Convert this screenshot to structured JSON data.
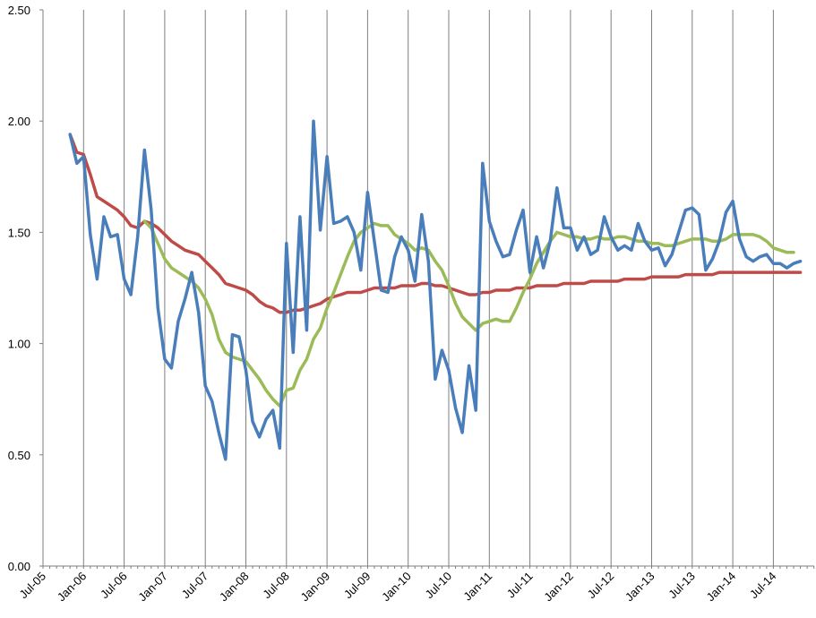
{
  "chart_data": {
    "type": "line",
    "title": "",
    "xlabel": "",
    "ylabel": "",
    "ylim": [
      0,
      2.5
    ],
    "yticks": [
      "0.00",
      "0.50",
      "1.00",
      "1.50",
      "2.00",
      "2.50"
    ],
    "x_tick_labels": [
      "Jul-05",
      "Jan-06",
      "Jul-06",
      "Jan-07",
      "Jul-07",
      "Jan-08",
      "Jul-08",
      "Jan-09",
      "Jul-09",
      "Jan-10",
      "Jul-10",
      "Jan-11",
      "Jul-11",
      "Jan-12",
      "Jul-12",
      "Jan-13",
      "Jul-13",
      "Jan-14",
      "Jul-14"
    ],
    "grid": "vertical",
    "legend": "none",
    "x_start": "2005-11",
    "series": [
      {
        "color": "#4a7ebb",
        "values": [
          1.94,
          1.81,
          1.84,
          1.49,
          1.29,
          1.57,
          1.48,
          1.49,
          1.29,
          1.22,
          1.48,
          1.87,
          1.6,
          1.16,
          0.93,
          0.89,
          1.1,
          1.2,
          1.32,
          1.14,
          0.81,
          0.74,
          0.6,
          0.48,
          1.04,
          1.03,
          0.88,
          0.65,
          0.58,
          0.66,
          0.7,
          0.53,
          1.45,
          0.96,
          1.57,
          1.06,
          2.0,
          1.51,
          1.84,
          1.54,
          1.55,
          1.57,
          1.5,
          1.33,
          1.68,
          1.46,
          1.24,
          1.23,
          1.39,
          1.48,
          1.42,
          1.28,
          1.58,
          1.37,
          0.84,
          0.97,
          0.88,
          0.71,
          0.6,
          0.9,
          0.7,
          1.81,
          1.55,
          1.46,
          1.39,
          1.4,
          1.51,
          1.6,
          1.32,
          1.48,
          1.34,
          1.46,
          1.7,
          1.52,
          1.52,
          1.42,
          1.48,
          1.4,
          1.42,
          1.57,
          1.48,
          1.42,
          1.44,
          1.42,
          1.54,
          1.46,
          1.42,
          1.43,
          1.35,
          1.4,
          1.5,
          1.6,
          1.61,
          1.58,
          1.33,
          1.38,
          1.46,
          1.59,
          1.64,
          1.47,
          1.39,
          1.37,
          1.39,
          1.4,
          1.36,
          1.36,
          1.34,
          1.36,
          1.37
        ]
      },
      {
        "color": "#be4b48",
        "values": [
          1.94,
          1.86,
          1.85,
          1.76,
          1.66,
          1.64,
          1.62,
          1.6,
          1.57,
          1.53,
          1.52,
          1.55,
          1.54,
          1.52,
          1.49,
          1.46,
          1.44,
          1.42,
          1.41,
          1.4,
          1.37,
          1.34,
          1.31,
          1.27,
          1.26,
          1.25,
          1.24,
          1.22,
          1.19,
          1.17,
          1.16,
          1.14,
          1.14,
          1.15,
          1.15,
          1.16,
          1.17,
          1.18,
          1.2,
          1.21,
          1.22,
          1.23,
          1.23,
          1.23,
          1.24,
          1.25,
          1.25,
          1.25,
          1.25,
          1.26,
          1.26,
          1.26,
          1.27,
          1.27,
          1.26,
          1.26,
          1.25,
          1.24,
          1.23,
          1.22,
          1.22,
          1.23,
          1.23,
          1.24,
          1.24,
          1.24,
          1.25,
          1.25,
          1.25,
          1.26,
          1.26,
          1.26,
          1.26,
          1.27,
          1.27,
          1.27,
          1.27,
          1.28,
          1.28,
          1.28,
          1.28,
          1.28,
          1.29,
          1.29,
          1.29,
          1.29,
          1.3,
          1.3,
          1.3,
          1.3,
          1.3,
          1.31,
          1.31,
          1.31,
          1.31,
          1.31,
          1.32,
          1.32,
          1.32,
          1.32,
          1.32,
          1.32,
          1.32,
          1.32,
          1.32,
          1.32,
          1.32,
          1.32,
          1.32
        ]
      },
      {
        "color": "#9bbb59",
        "values": [
          null,
          null,
          null,
          null,
          null,
          null,
          null,
          null,
          null,
          null,
          null,
          1.55,
          1.52,
          1.45,
          1.38,
          1.34,
          1.32,
          1.3,
          1.28,
          1.25,
          1.2,
          1.13,
          1.02,
          0.96,
          0.94,
          0.93,
          0.92,
          0.88,
          0.84,
          0.79,
          0.75,
          0.72,
          0.79,
          0.8,
          0.88,
          0.93,
          1.02,
          1.07,
          1.16,
          1.23,
          1.31,
          1.39,
          1.46,
          1.5,
          1.52,
          1.54,
          1.53,
          1.53,
          1.49,
          1.47,
          1.45,
          1.42,
          1.43,
          1.42,
          1.37,
          1.33,
          1.26,
          1.18,
          1.12,
          1.09,
          1.06,
          1.09,
          1.1,
          1.11,
          1.1,
          1.1,
          1.16,
          1.23,
          1.29,
          1.36,
          1.41,
          1.46,
          1.5,
          1.49,
          1.48,
          1.48,
          1.47,
          1.47,
          1.48,
          1.47,
          1.47,
          1.48,
          1.48,
          1.47,
          1.46,
          1.46,
          1.45,
          1.45,
          1.44,
          1.44,
          1.45,
          1.46,
          1.47,
          1.47,
          1.47,
          1.46,
          1.46,
          1.47,
          1.49,
          1.49,
          1.49,
          1.49,
          1.48,
          1.46,
          1.43,
          1.42,
          1.41,
          1.41
        ]
      }
    ]
  }
}
